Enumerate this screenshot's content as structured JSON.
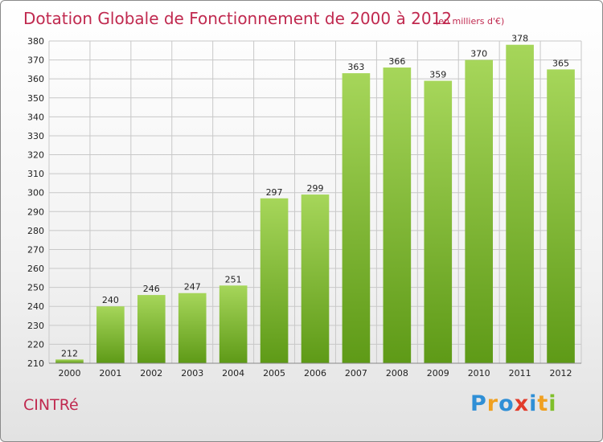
{
  "commune": "CINTRé",
  "logo_text": "Proxiti",
  "colors": {
    "title": "#c0294f",
    "bar_light": "#a6d65a",
    "bar_dark": "#5e9a17",
    "grid": "#c8c8c8"
  },
  "chart_data": {
    "type": "bar",
    "title": "Dotation Globale de Fonctionnement de 2000 à 2012",
    "subtitle": "(en milliers d'€)",
    "xlabel": "",
    "ylabel": "",
    "categories": [
      "2000",
      "2001",
      "2002",
      "2003",
      "2004",
      "2005",
      "2006",
      "2007",
      "2008",
      "2009",
      "2010",
      "2011",
      "2012"
    ],
    "values": [
      212,
      240,
      246,
      247,
      251,
      297,
      299,
      363,
      366,
      359,
      370,
      378,
      365
    ],
    "ylim": [
      210,
      380
    ],
    "yticks": [
      210,
      220,
      230,
      240,
      250,
      260,
      270,
      280,
      290,
      300,
      310,
      320,
      330,
      340,
      350,
      360,
      370,
      380
    ],
    "grid": true,
    "legend": "none"
  }
}
